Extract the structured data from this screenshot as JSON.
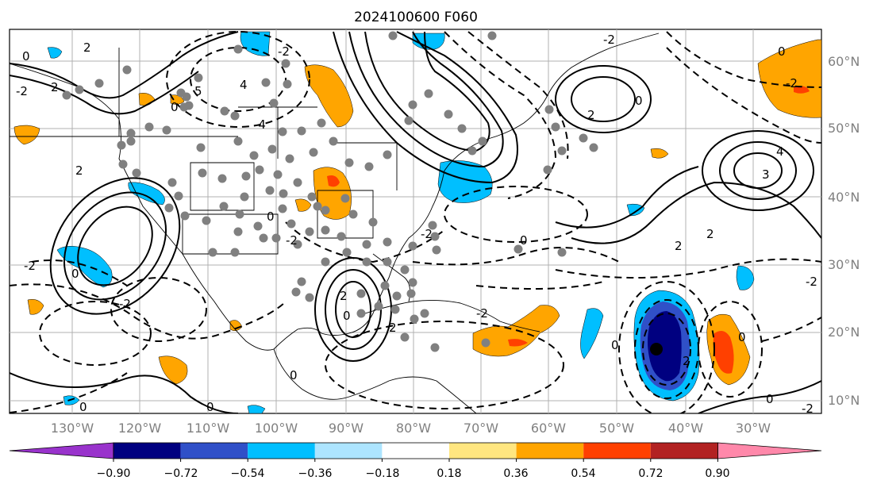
{
  "title": "2024100600 F060",
  "map": {
    "lon_labels": [
      "130°W",
      "120°W",
      "110°W",
      "100°W",
      "90°W",
      "80°W",
      "70°W",
      "60°W",
      "50°W",
      "40°W",
      "30°W"
    ],
    "lat_labels": [
      "60°N",
      "50°N",
      "40°N",
      "30°N",
      "20°N",
      "10°N"
    ],
    "contour_labels": [
      "0",
      "2",
      "2",
      "-2",
      "2",
      "0",
      "-2",
      "-2",
      "4",
      "-4",
      "5",
      "-2",
      "0",
      "2",
      "-2",
      "0",
      "0",
      "2",
      "-2",
      "0",
      "2",
      "0",
      "-2",
      "0",
      "-2",
      "2",
      "0",
      "2",
      "0",
      "0",
      "-2",
      "2",
      "-2",
      "0",
      "0",
      "-2",
      "4",
      "3",
      "0"
    ],
    "marker_color": "#808080",
    "marker_labels": [
      "station-dots"
    ],
    "center_marker_color": "#000000"
  },
  "colorbar": {
    "colors": [
      "#9933cc",
      "#000080",
      "#3050c8",
      "#00bfff",
      "#ade5ff",
      "#ffffff",
      "#ffe680",
      "#ffa500",
      "#ff4000",
      "#b22222",
      "#ff88aa"
    ],
    "tick_labels": [
      "−0.90",
      "−0.72",
      "−0.54",
      "−0.36",
      "−0.18",
      "0.18",
      "0.36",
      "0.54",
      "0.72",
      "0.90"
    ]
  }
}
